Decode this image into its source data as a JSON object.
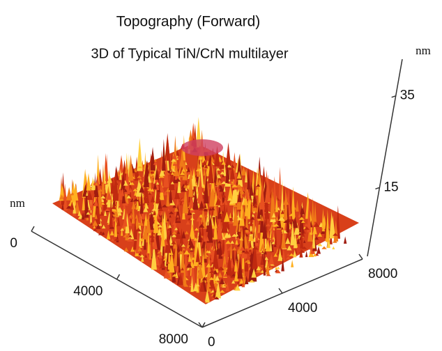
{
  "chart_data": {
    "type": "surface",
    "title": "Topography (Forward)",
    "subtitle": "3D of Typical TiN/CrN multilayer",
    "x_unit": "nm",
    "z_unit": "nm",
    "xlim": [
      0,
      8000
    ],
    "xticks": [
      0,
      4000,
      8000
    ],
    "ylim": [
      0,
      8000
    ],
    "yticks": [
      0,
      4000,
      8000
    ],
    "zlim": [
      0,
      43
    ],
    "zticks": [
      15,
      35
    ]
  }
}
